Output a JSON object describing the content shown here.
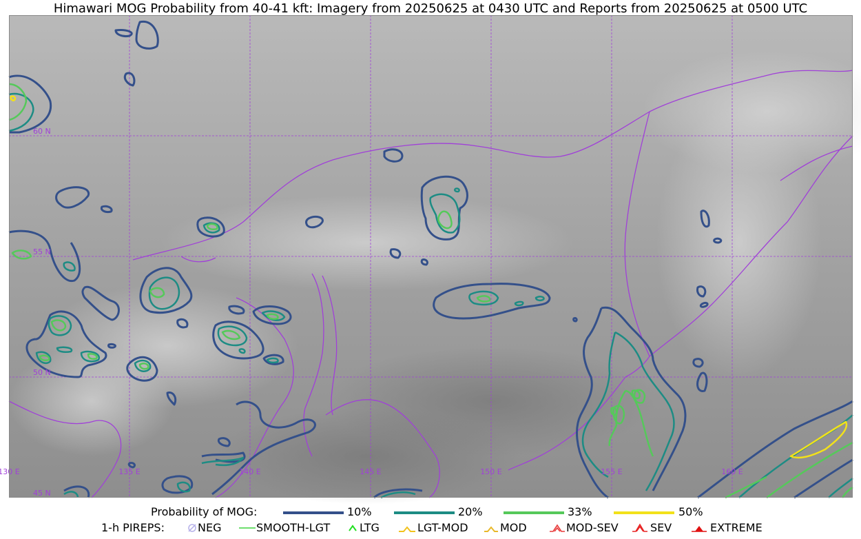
{
  "title": "Himawari MOG Probability from 40-41 kft: Imagery from 20250625 at 0430 UTC and Reports from 20250625 at 0500 UTC",
  "colors": {
    "boundary": "#a040d8",
    "grid": "#a040d8",
    "contour_10": "#34508a",
    "contour_20": "#1d8c84",
    "contour_33": "#55c95a",
    "contour_50": "#f2e11a"
  },
  "map": {
    "latitude_labels": [
      "60 N",
      "55 N",
      "50 N",
      "45 N"
    ],
    "longitude_labels": [
      "130 E",
      "135 E",
      "140 E",
      "145 E",
      "150 E",
      "155 E",
      "160 E"
    ]
  },
  "legend": {
    "probability": {
      "label": "Probability of MOG:",
      "items": [
        {
          "label": "10%",
          "color": "#34508a"
        },
        {
          "label": "20%",
          "color": "#1d8c84"
        },
        {
          "label": "33%",
          "color": "#55c95a"
        },
        {
          "label": "50%",
          "color": "#f2e11a"
        }
      ]
    },
    "pireps": {
      "label": "1-h PIREPS:",
      "items": [
        {
          "label": "NEG",
          "icon": "neg-icon"
        },
        {
          "label": "SMOOTH-LGT",
          "icon": "smooth-lgt-icon"
        },
        {
          "label": "LTG",
          "icon": "ltg-icon"
        },
        {
          "label": "LGT-MOD",
          "icon": "lgt-mod-icon"
        },
        {
          "label": "MOD",
          "icon": "mod-icon"
        },
        {
          "label": "MOD-SEV",
          "icon": "mod-sev-icon"
        },
        {
          "label": "SEV",
          "icon": "sev-icon"
        },
        {
          "label": "EXTREME",
          "icon": "extreme-icon"
        }
      ]
    }
  }
}
